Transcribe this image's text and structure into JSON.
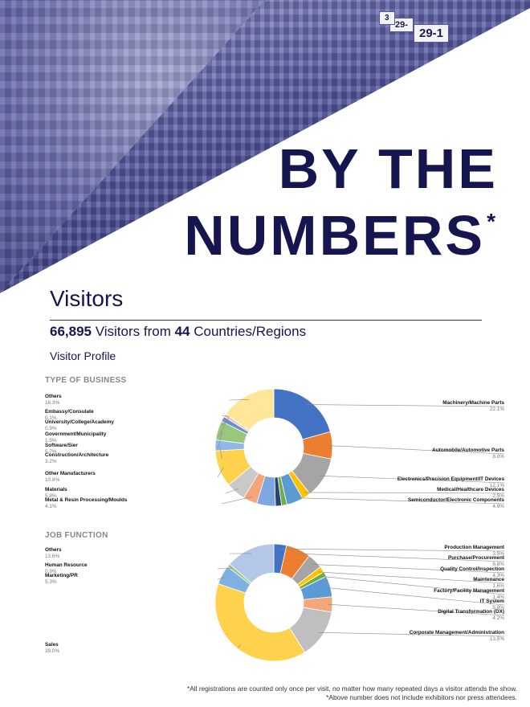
{
  "hero": {
    "title_line1": "BY THE",
    "title_line2": "NUMBERS",
    "title_mark": "*",
    "signs": [
      "29-1",
      "29-",
      "3"
    ]
  },
  "visitors": {
    "section_title": "Visitors",
    "total_count": "66,895",
    "headline_mid": " Visitors from ",
    "country_count": "44",
    "headline_end": " Countries/Regions",
    "profile_label": "Visitor Profile"
  },
  "colors": {
    "navy": "#15164f",
    "blue": "#4472c4",
    "orange": "#ed7d31",
    "gray": "#a5a5a5",
    "yellow": "#ffc000",
    "lightblue": "#5b9bd5",
    "green": "#70ad47",
    "cream": "#ffe699"
  },
  "chart_data": [
    {
      "type": "pie",
      "title": "TYPE OF BUSINESS",
      "donut": true,
      "slices": [
        {
          "label": "Machinery/Machine Parts",
          "value_text": "22.1%",
          "value": 22.1,
          "color": "#4472c4"
        },
        {
          "label": "Automobile/Automotive Parts",
          "value_text": "8.0%",
          "value": 8.0,
          "color": "#ed7d31"
        },
        {
          "label": "Electronics/Precision Equipment/IT Devices",
          "value_text": "12.1%",
          "value": 12.1,
          "color": "#a5a5a5"
        },
        {
          "label": "Medical/Healthcare Devices",
          "value_text": "2.5%",
          "value": 2.5,
          "color": "#ffc000"
        },
        {
          "label": "Semiconductor/Electronic Components",
          "value_text": "4.9%",
          "value": 4.9,
          "color": "#5b9bd5"
        },
        {
          "label": "",
          "value": 1.6,
          "color": "#70ad47"
        },
        {
          "label": "",
          "value": 1.8,
          "color": "#264478"
        },
        {
          "label": "",
          "value": 5.5,
          "color": "#7ea6e0"
        },
        {
          "label": "Metal & Resin Processing/Moulds",
          "value_text": "4.1%",
          "value": 4.1,
          "color": "#f4a57a"
        },
        {
          "label": "Materials",
          "value_text": "5.8%",
          "value": 5.8,
          "color": "#c9c9c9"
        },
        {
          "label": "Other Manufacturers",
          "value_text": "10.8%",
          "value": 10.8,
          "color": "#ffd24d"
        },
        {
          "label": "Construction/Architecture",
          "value_text": "3.2%",
          "value": 3.2,
          "color": "#8fb8e6"
        },
        {
          "label": "Software/Sier",
          "value_text": "5.7%",
          "value": 5.7,
          "color": "#9bc67e"
        },
        {
          "label": "Government/Municipality",
          "value_text": "1.5%",
          "value": 1.5,
          "color": "#6a8ed0"
        },
        {
          "label": "University/College/Academy",
          "value_text": "0.9%",
          "value": 0.9,
          "color": "#f7c6a8"
        },
        {
          "label": "Embassy/Consulate",
          "value_text": "0.1%",
          "value": 0.1,
          "color": "#d8d8d8"
        },
        {
          "label": "Others",
          "value_text": "16.3%",
          "value": 16.3,
          "color": "#ffe699"
        }
      ]
    },
    {
      "type": "pie",
      "title": "JOB FUNCTION",
      "donut": true,
      "slices": [
        {
          "label": "Production Management",
          "value_text": "3.5%",
          "value": 3.5,
          "color": "#4472c4"
        },
        {
          "label": "Purchase/Procurement",
          "value_text": "6.8%",
          "value": 6.8,
          "color": "#ed7d31"
        },
        {
          "label": "Quality Control/Inspection",
          "value_text": "4.3%",
          "value": 4.3,
          "color": "#a5a5a5"
        },
        {
          "label": "Maintenance",
          "value_text": "1.6%",
          "value": 1.6,
          "color": "#ffc000"
        },
        {
          "label": "Factory/Facility Management",
          "value_text": "1.4%",
          "value": 1.4,
          "color": "#70ad47"
        },
        {
          "label": "IT System",
          "value_text": "5.8%",
          "value": 5.8,
          "color": "#5b9bd5"
        },
        {
          "label": "Digital Transformation (DX)",
          "value_text": "4.2%",
          "value": 4.2,
          "color": "#f4a57a"
        },
        {
          "label": "Corporate Management/Administration",
          "value_text": "13.5%",
          "value": 13.5,
          "color": "#bfbfbf"
        },
        {
          "label": "Sales",
          "value_text": "39.0%",
          "value": 39.0,
          "color": "#ffd24d"
        },
        {
          "label": "Marketing/PR",
          "value_text": "5.3%",
          "value": 5.3,
          "color": "#7fb0e3"
        },
        {
          "label": "Human Resource",
          "value_text": "0.9%",
          "value": 0.9,
          "color": "#9bc67e"
        },
        {
          "label": "Others",
          "value_text": "13.6%",
          "value": 13.6,
          "color": "#b4c7e7"
        }
      ]
    }
  ],
  "footnotes": {
    "line1": "*All registrations are counted only once per visit, no matter how many repeated days a visitor attends the show.",
    "line2": "*Above number does not include exhibitors nor press attendees."
  }
}
